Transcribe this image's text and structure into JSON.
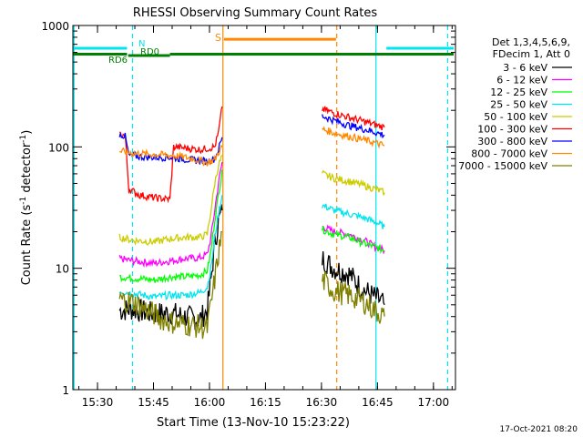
{
  "chart_data": {
    "type": "line",
    "title": "RHESSI Observing Summary Count Rates",
    "xlabel": "Start Time (13-Nov-10 15:23:22)",
    "ylabel_main": "Count Rate (s",
    "ylabel_sup1": "-1",
    "ylabel_mid": " detector",
    "ylabel_sup2": "-1",
    "ylabel_end": ")",
    "yscale": "log",
    "ylim": [
      1,
      1000
    ],
    "xlim_minutes": [
      0,
      102.5
    ],
    "x_tick_labels": [
      "15:30",
      "15:45",
      "16:00",
      "16:15",
      "16:30",
      "16:45",
      "17:00"
    ],
    "x_tick_minutes": [
      6.6,
      21.6,
      36.6,
      51.6,
      66.6,
      81.6,
      96.6
    ],
    "y_tick_labels": [
      "1",
      "10",
      "100",
      "1000"
    ],
    "y_tick_values": [
      1,
      10,
      100,
      1000
    ],
    "legend_header": [
      "Det 1,3,4,5,6,9,",
      "FDecim 1, Att 0"
    ],
    "footer_date": "17-Oct-2021 08:20",
    "annotations": [
      {
        "label": "N",
        "color": "#00e5ee"
      },
      {
        "label": "RD0",
        "color": "#008000"
      },
      {
        "label": "RD6",
        "color": "#008000"
      },
      {
        "label": "S",
        "color": "#ff8800"
      }
    ],
    "bars": [
      {
        "name": "Night",
        "color": "#00e5ee",
        "y": 650,
        "segments": [
          [
            0,
            14.5
          ],
          [
            84,
            102
          ]
        ]
      },
      {
        "name": "RD0",
        "color": "#008000",
        "y": 565,
        "segments": [
          [
            14.8,
            26
          ]
        ]
      },
      {
        "name": "RD6",
        "color": "#008000",
        "y": 580,
        "segments": [
          [
            0,
            14.5
          ],
          [
            26,
            102
          ]
        ]
      },
      {
        "name": "SAA",
        "color": "#ff8800",
        "y": 770,
        "segments": [
          [
            40.5,
            70.5
          ]
        ]
      }
    ],
    "vlines": [
      {
        "t": 0.3,
        "color": "#00e5ee",
        "dash": false
      },
      {
        "t": 16.0,
        "color": "#00e5ee",
        "dash": true
      },
      {
        "t": 40.2,
        "color": "#ff8800",
        "dash": false
      },
      {
        "t": 70.7,
        "color": "#ff8800",
        "dash": true
      },
      {
        "t": 81.2,
        "color": "#00e5ee",
        "dash": false
      },
      {
        "t": 100.4,
        "color": "#00e5ee",
        "dash": true
      }
    ],
    "series": [
      {
        "name": "3 - 6 keV",
        "color": "#000000",
        "segments": [
          [
            [
              12.5,
              4.5
            ],
            [
              16,
              4.6
            ],
            [
              22,
              4.2
            ],
            [
              26,
              4.3
            ],
            [
              30,
              4.0
            ],
            [
              34,
              3.8
            ],
            [
              36,
              4.5
            ],
            [
              37,
              8
            ],
            [
              38,
              16
            ],
            [
              39,
              24
            ],
            [
              40,
              30
            ]
          ],
          [
            [
              66.8,
              12
            ],
            [
              70,
              10
            ],
            [
              74,
              9
            ],
            [
              77,
              7
            ],
            [
              80,
              6
            ],
            [
              82,
              5.5
            ],
            [
              83.5,
              5.0
            ]
          ]
        ]
      },
      {
        "name": "6 - 12 keV",
        "color": "#ff00ff",
        "segments": [
          [
            [
              12.5,
              12
            ],
            [
              16,
              11.5
            ],
            [
              22,
              11
            ],
            [
              26,
              11.5
            ],
            [
              30,
              12
            ],
            [
              34,
              12.2
            ],
            [
              36,
              13
            ],
            [
              37,
              18
            ],
            [
              38,
              30
            ],
            [
              39,
              50
            ],
            [
              40,
              75
            ]
          ],
          [
            [
              66.8,
              22
            ],
            [
              70,
              20
            ],
            [
              74,
              19
            ],
            [
              78,
              17
            ],
            [
              81,
              15
            ],
            [
              83.5,
              14
            ]
          ]
        ]
      },
      {
        "name": "12 - 25 keV",
        "color": "#00ff00",
        "segments": [
          [
            [
              12.5,
              8.5
            ],
            [
              16,
              8.3
            ],
            [
              22,
              8.0
            ],
            [
              26,
              8.5
            ],
            [
              30,
              8.5
            ],
            [
              34,
              8.8
            ],
            [
              36,
              9.5
            ],
            [
              37,
              14
            ],
            [
              38,
              25
            ],
            [
              39,
              40
            ],
            [
              40,
              65
            ]
          ],
          [
            [
              66.8,
              21
            ],
            [
              70,
              19
            ],
            [
              74,
              18
            ],
            [
              78,
              16
            ],
            [
              81,
              15
            ],
            [
              83.5,
              14
            ]
          ]
        ]
      },
      {
        "name": "25 - 50 keV",
        "color": "#00e5ee",
        "segments": [
          [
            [
              12.5,
              6.5
            ],
            [
              16,
              6.2
            ],
            [
              22,
              5.8
            ],
            [
              26,
              6.0
            ],
            [
              30,
              6.0
            ],
            [
              34,
              6.3
            ],
            [
              36,
              7
            ],
            [
              37,
              10
            ],
            [
              38,
              18
            ],
            [
              39,
              28
            ],
            [
              40,
              40
            ]
          ],
          [
            [
              66.8,
              33
            ],
            [
              70,
              30
            ],
            [
              74,
              28
            ],
            [
              78,
              26
            ],
            [
              81,
              24
            ],
            [
              83.5,
              22
            ]
          ]
        ]
      },
      {
        "name": "50 - 100 keV",
        "color": "#cccc00",
        "segments": [
          [
            [
              12.5,
              18
            ],
            [
              16,
              17
            ],
            [
              22,
              16.5
            ],
            [
              26,
              17.5
            ],
            [
              30,
              18
            ],
            [
              34,
              18
            ],
            [
              36,
              19
            ],
            [
              37,
              30
            ],
            [
              38,
              50
            ],
            [
              39,
              70
            ],
            [
              40,
              85
            ]
          ],
          [
            [
              66.8,
              60
            ],
            [
              70,
              55
            ],
            [
              74,
              52
            ],
            [
              78,
              48
            ],
            [
              81,
              45
            ],
            [
              83.5,
              42
            ]
          ]
        ]
      },
      {
        "name": "100 - 300 keV",
        "color": "#ff0000",
        "segments": [
          [
            [
              12.5,
              128
            ],
            [
              14,
              124
            ],
            [
              15,
              45
            ],
            [
              18,
              40
            ],
            [
              22,
              38
            ],
            [
              26,
              37
            ],
            [
              27,
              100
            ],
            [
              30,
              98
            ],
            [
              34,
              95
            ],
            [
              36,
              97
            ],
            [
              38,
              100
            ],
            [
              39,
              130
            ],
            [
              40,
              215
            ]
          ],
          [
            [
              66.8,
              205
            ],
            [
              70,
              190
            ],
            [
              74,
              175
            ],
            [
              78,
              162
            ],
            [
              81,
              152
            ],
            [
              83.5,
              145
            ]
          ]
        ]
      },
      {
        "name": "300 - 800 keV",
        "color": "#0000ff",
        "segments": [
          [
            [
              12.5,
              128
            ],
            [
              14,
              122
            ],
            [
              15,
              85
            ],
            [
              18,
              83
            ],
            [
              22,
              82
            ],
            [
              26,
              82
            ],
            [
              30,
              79
            ],
            [
              34,
              77
            ],
            [
              36,
              76
            ],
            [
              38,
              80
            ],
            [
              39,
              95
            ],
            [
              40,
              120
            ]
          ],
          [
            [
              66.8,
              180
            ],
            [
              70,
              165
            ],
            [
              74,
              150
            ],
            [
              78,
              140
            ],
            [
              81,
              132
            ],
            [
              83.5,
              125
            ]
          ]
        ]
      },
      {
        "name": "800 - 7000 keV",
        "color": "#ff8800",
        "segments": [
          [
            [
              12.5,
              92
            ],
            [
              16,
              89
            ],
            [
              20,
              87
            ],
            [
              24,
              86
            ],
            [
              28,
              84
            ],
            [
              32,
              80
            ],
            [
              36,
              74
            ],
            [
              38,
              78
            ],
            [
              39,
              90
            ],
            [
              40,
              100
            ]
          ],
          [
            [
              66.8,
              140
            ],
            [
              70,
              130
            ],
            [
              74,
              122
            ],
            [
              78,
              114
            ],
            [
              81,
              108
            ],
            [
              83.5,
              102
            ]
          ]
        ]
      },
      {
        "name": "7000 - 15000 keV",
        "color": "#808000",
        "segments": [
          [
            [
              12.5,
              5.5
            ],
            [
              16,
              5.3
            ],
            [
              20,
              4.5
            ],
            [
              24,
              3.8
            ],
            [
              28,
              3.5
            ],
            [
              32,
              3.4
            ],
            [
              36,
              3.2
            ],
            [
              37,
              5
            ],
            [
              38,
              8
            ],
            [
              39,
              13
            ],
            [
              40,
              20
            ]
          ],
          [
            [
              66.8,
              8.0
            ],
            [
              70,
              6.5
            ],
            [
              74,
              6.0
            ],
            [
              78,
              5.3
            ],
            [
              81,
              4.5
            ],
            [
              83.5,
              4.0
            ]
          ]
        ]
      }
    ]
  }
}
